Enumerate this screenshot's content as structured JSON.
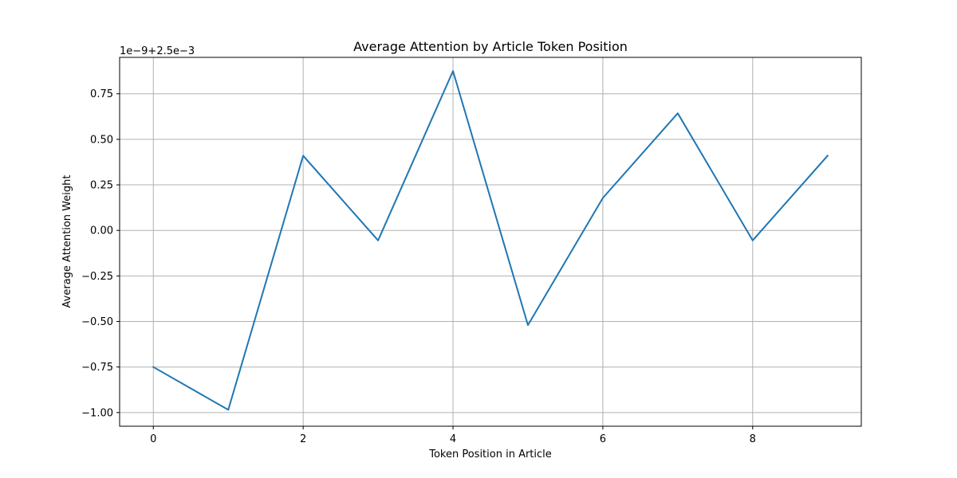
{
  "chart_data": {
    "type": "line",
    "title": "Average Attention by Article Token Position",
    "xlabel": "Token Position in Article",
    "ylabel": "Average Attention Weight",
    "y_offset_label": "1e−9+2.5e−3",
    "grid": true,
    "xlim": [
      -0.45,
      9.45
    ],
    "ylim": [
      -1.075,
      0.95
    ],
    "x_ticks": [
      0,
      2,
      4,
      6,
      8
    ],
    "x_tick_labels": [
      "0",
      "2",
      "4",
      "6",
      "8"
    ],
    "y_ticks": [
      -1.0,
      -0.75,
      -0.5,
      -0.25,
      0.0,
      0.25,
      0.5,
      0.75
    ],
    "y_tick_labels": [
      "−1.00",
      "−0.75",
      "−0.50",
      "−0.25",
      "0.00",
      "0.25",
      "0.50",
      "0.75"
    ],
    "x": [
      0,
      1,
      2,
      3,
      4,
      5,
      6,
      7,
      8,
      9
    ],
    "series": [
      {
        "color": "#1f77b4",
        "values": [
          -0.75,
          -0.985,
          0.41,
          -0.055,
          0.875,
          -0.52,
          0.178,
          0.643,
          -0.055,
          0.41
        ]
      }
    ]
  }
}
